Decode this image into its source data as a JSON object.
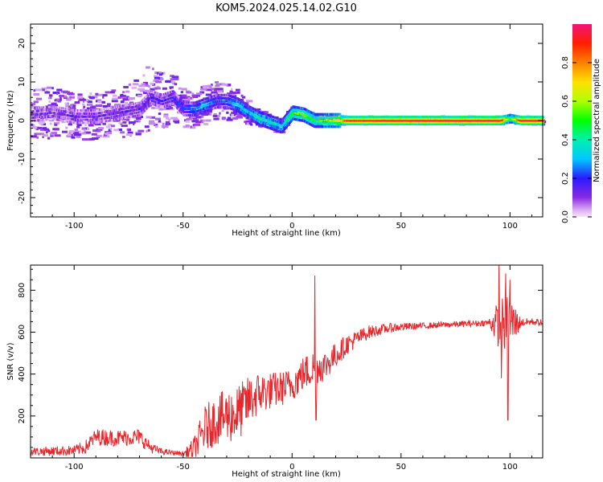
{
  "figure": {
    "title": "KOM5.2024.025.14.02.G10"
  },
  "colors": {
    "snr_line": "#e8262b",
    "axis": "#000000",
    "background": "#ffffff"
  },
  "chart_data": [
    {
      "type": "heatmap",
      "xlabel": "Height of straight line (km)",
      "ylabel": "Frequency (Hz)",
      "xlim": [
        -120,
        115
      ],
      "ylim": [
        -25,
        25
      ],
      "xticks": [
        -100,
        -50,
        0,
        50,
        100
      ],
      "yticks": [
        -20,
        -10,
        0,
        10,
        20
      ],
      "grid": false,
      "colorbar": {
        "label": "Normalized spectral amplitude",
        "range": [
          0,
          1
        ],
        "ticks": [
          0.0,
          0.2,
          0.4,
          0.6,
          0.8
        ],
        "colormap": "hsv-like: magenta/white (0) - violet - blue - cyan - green - yellow - orange - red - pink (1)"
      },
      "ridge": {
        "description": "frequency of the main spectral ridge vs height",
        "x": [
          -120,
          -110,
          -100,
          -90,
          -80,
          -70,
          -65,
          -60,
          -55,
          -50,
          -45,
          -40,
          -35,
          -30,
          -25,
          -20,
          -15,
          -10,
          -5,
          0,
          5,
          10,
          15,
          20,
          25,
          50,
          75,
          95,
          100,
          105,
          115
        ],
        "y": [
          1.5,
          2,
          1,
          1,
          2,
          3,
          6,
          5,
          6,
          3,
          3,
          4,
          5,
          5,
          4,
          2,
          0.5,
          -0.5,
          -1.5,
          2,
          1.5,
          0,
          0,
          0,
          0,
          0,
          0,
          0,
          0.5,
          0,
          0
        ],
        "amplitude": [
          0.12,
          0.12,
          0.12,
          0.13,
          0.13,
          0.14,
          0.14,
          0.15,
          0.16,
          0.2,
          0.25,
          0.35,
          0.2,
          0.25,
          0.35,
          0.3,
          0.4,
          0.35,
          0.35,
          0.5,
          0.55,
          0.45,
          0.55,
          0.6,
          0.9,
          0.95,
          0.95,
          0.95,
          0.5,
          0.95,
          0.95
        ]
      },
      "scatter_spread": {
        "description": "approximate half-width (Hz) of scattered low-amplitude speckle around ridge",
        "x": [
          -120,
          -100,
          -80,
          -65,
          -55,
          -45,
          -30,
          -20,
          -10,
          0,
          25,
          115
        ],
        "halfwidth": [
          7,
          6,
          6,
          9,
          6,
          5,
          5,
          3,
          2,
          1.5,
          1,
          1
        ]
      }
    },
    {
      "type": "line",
      "xlabel": "Height of straight line (km)",
      "ylabel": "SNR (v/v)",
      "xlim": [
        -120,
        115
      ],
      "ylim": [
        0,
        920
      ],
      "xticks": [
        -100,
        -50,
        0,
        50,
        100
      ],
      "yticks": [
        200,
        400,
        600,
        800
      ],
      "grid": false,
      "series": [
        {
          "color": "#e8262b",
          "baseline": {
            "x": [
              -120,
              -100,
              -95,
              -90,
              -80,
              -70,
              -65,
              -60,
              -55,
              -50,
              -45,
              -40,
              -35,
              -30,
              -25,
              -20,
              -15,
              -10,
              -5,
              0,
              5,
              10,
              15,
              20,
              25,
              30,
              35,
              40,
              45,
              50,
              60,
              70,
              80,
              90,
              95,
              100,
              105,
              110,
              115
            ],
            "y": [
              30,
              35,
              50,
              100,
              95,
              100,
              50,
              30,
              25,
              20,
              40,
              140,
              180,
              200,
              210,
              270,
              310,
              320,
              330,
              350,
              400,
              430,
              440,
              490,
              540,
              570,
              600,
              610,
              620,
              625,
              630,
              635,
              640,
              645,
              640,
              640,
              645,
              650,
              645
            ]
          },
          "noise_amplitude": {
            "x": [
              -120,
              -100,
              -90,
              -70,
              -60,
              -50,
              -45,
              -40,
              -35,
              -30,
              -25,
              -20,
              -10,
              0,
              10,
              20,
              30,
              40,
              50,
              60,
              90,
              95,
              100,
              105,
              115
            ],
            "y": [
              20,
              25,
              40,
              40,
              15,
              10,
              60,
              110,
              120,
              130,
              140,
              120,
              90,
              80,
              90,
              60,
              40,
              25,
              20,
              15,
              15,
              120,
              150,
              20,
              15
            ]
          },
          "spikes": [
            {
              "x": 10.5,
              "y": 870
            },
            {
              "x": 11.0,
              "y": 180
            },
            {
              "x": 95.0,
              "y": 930
            },
            {
              "x": 96.0,
              "y": 380
            },
            {
              "x": 98.0,
              "y": 880
            },
            {
              "x": 99.0,
              "y": 180
            },
            {
              "x": 100.0,
              "y": 850
            }
          ]
        }
      ]
    }
  ]
}
